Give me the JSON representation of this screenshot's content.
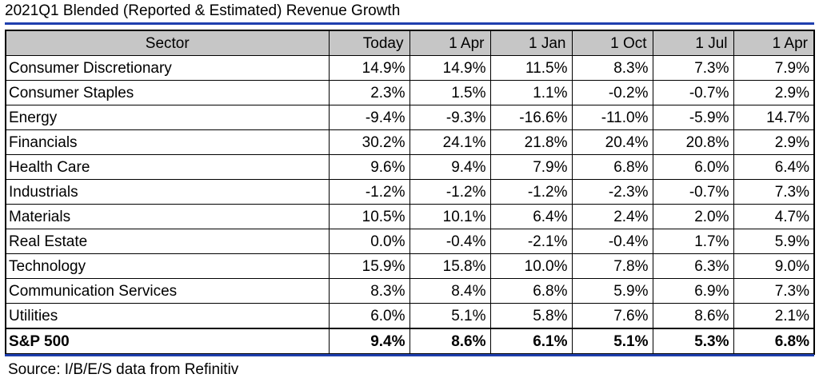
{
  "title": "2021Q1 Blended (Reported & Estimated) Revenue Growth",
  "source": "Source: I/B/E/S data from Refinitiv",
  "chart_data": {
    "type": "table",
    "columns": [
      "Sector",
      "Today",
      "1 Apr",
      "1 Jan",
      "1 Oct",
      "1 Jul",
      "1 Apr"
    ],
    "rows": [
      {
        "label": "Consumer Discretionary",
        "values": [
          "14.9%",
          "14.9%",
          "11.5%",
          "8.3%",
          "7.3%",
          "7.9%"
        ]
      },
      {
        "label": "Consumer Staples",
        "values": [
          "2.3%",
          "1.5%",
          "1.1%",
          "-0.2%",
          "-0.7%",
          "2.9%"
        ]
      },
      {
        "label": "Energy",
        "values": [
          "-9.4%",
          "-9.3%",
          "-16.6%",
          "-11.0%",
          "-5.9%",
          "14.7%"
        ]
      },
      {
        "label": "Financials",
        "values": [
          "30.2%",
          "24.1%",
          "21.8%",
          "20.4%",
          "20.8%",
          "2.9%"
        ]
      },
      {
        "label": "Health Care",
        "values": [
          "9.6%",
          "9.4%",
          "7.9%",
          "6.8%",
          "6.0%",
          "6.4%"
        ]
      },
      {
        "label": "Industrials",
        "values": [
          "-1.2%",
          "-1.2%",
          "-1.2%",
          "-2.3%",
          "-0.7%",
          "7.3%"
        ]
      },
      {
        "label": "Materials",
        "values": [
          "10.5%",
          "10.1%",
          "6.4%",
          "2.4%",
          "2.0%",
          "4.7%"
        ]
      },
      {
        "label": "Real Estate",
        "values": [
          "0.0%",
          "-0.4%",
          "-2.1%",
          "-0.4%",
          "1.7%",
          "5.9%"
        ]
      },
      {
        "label": "Technology",
        "values": [
          "15.9%",
          "15.8%",
          "10.0%",
          "7.8%",
          "6.3%",
          "9.0%"
        ]
      },
      {
        "label": "Communication Services",
        "values": [
          "8.3%",
          "8.4%",
          "6.8%",
          "5.9%",
          "6.9%",
          "7.3%"
        ]
      },
      {
        "label": "Utilities",
        "values": [
          "6.0%",
          "5.1%",
          "5.8%",
          "7.6%",
          "8.6%",
          "2.1%"
        ]
      }
    ],
    "total": {
      "label": "S&P 500",
      "values": [
        "9.4%",
        "8.6%",
        "6.1%",
        "5.1%",
        "5.3%",
        "6.8%"
      ]
    }
  },
  "colors": {
    "rule": "#1f3fae",
    "header_bg": "#c6c6c6"
  }
}
